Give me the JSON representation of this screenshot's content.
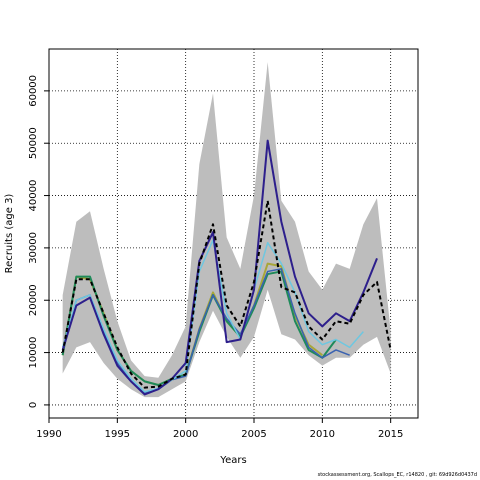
{
  "chart_data": {
    "type": "line",
    "title": "",
    "xlabel": "Years",
    "ylabel": "Recruits (age 3)",
    "xlim": [
      1990,
      2017
    ],
    "ylim": [
      -2500,
      68000
    ],
    "xticks": [
      1990,
      1995,
      2000,
      2005,
      2010,
      2015
    ],
    "yticks": [
      0,
      10000,
      20000,
      30000,
      40000,
      50000,
      60000
    ],
    "grid": true,
    "legend": "none",
    "band": {
      "x": [
        1991,
        1992,
        1993,
        1994,
        1995,
        1996,
        1997,
        1998,
        1999,
        2000,
        2001,
        2002,
        2003,
        2004,
        2005,
        2006,
        2007,
        2008,
        2009,
        2010,
        2011,
        2012,
        2013,
        2014,
        2015
      ],
      "upper": [
        21000,
        35000,
        37000,
        26000,
        16000,
        8500,
        5500,
        5200,
        9500,
        15000,
        46000,
        59500,
        32000,
        26000,
        40000,
        65500,
        39000,
        35000,
        25500,
        22000,
        27000,
        26000,
        34500,
        39500,
        14000
      ],
      "lower": [
        6000,
        11000,
        12000,
        8000,
        5000,
        3000,
        1500,
        1500,
        3000,
        4500,
        12000,
        18000,
        13000,
        9000,
        13000,
        22000,
        13500,
        12500,
        9500,
        7500,
        9000,
        9000,
        11500,
        13000,
        6000
      ],
      "color": "#bdbdbd"
    },
    "series": [
      {
        "x": [
          1991,
          1992,
          1993,
          1994,
          1995,
          1996,
          1997,
          1998,
          1999,
          2000,
          2001,
          2002,
          2003,
          2004,
          2005,
          2006,
          2007,
          2008,
          2009,
          2010,
          2011,
          2012,
          2013,
          2014,
          2015
        ],
        "values": [
          10000,
          24000,
          24000,
          17500,
          11000,
          6000,
          3300,
          3500,
          5000,
          5800,
          27000,
          34500,
          19000,
          15000,
          23500,
          39000,
          22500,
          21500,
          15000,
          12500,
          16000,
          15500,
          21000,
          23500,
          10500
        ],
        "color": "#000000",
        "width": 2,
        "dash": "4,3"
      },
      {
        "x": [
          1991,
          1992,
          1993,
          1994,
          1995,
          1996,
          1997,
          1998,
          1999,
          2000,
          2001,
          2002,
          2003,
          2004,
          2005,
          2006,
          2007,
          2008,
          2009,
          2010,
          2011,
          2012,
          2013,
          2014,
          2015
        ],
        "values": [
          10000,
          24000,
          24000,
          17500,
          11000,
          6000,
          3300,
          3500,
          5000,
          5800,
          27000,
          34500,
          19000,
          15000,
          23500,
          39000,
          22500,
          21500,
          15000,
          12500,
          16000,
          15500,
          21000,
          23500,
          10500
        ],
        "color": "#9a9a9a",
        "width": 1,
        "dash": "4,3"
      },
      {
        "x": [
          1991,
          1992,
          1993,
          1994,
          1995,
          1996,
          1997,
          1998,
          1999,
          2000,
          2001,
          2002,
          2003,
          2004,
          2005,
          2006,
          2007,
          2008,
          2009,
          2010,
          2011,
          2012,
          2013,
          2014
        ],
        "values": [
          10500,
          19000,
          20500,
          13500,
          7500,
          4500,
          2000,
          3000,
          5000,
          8000,
          27500,
          33000,
          12000,
          12500,
          22000,
          50500,
          35000,
          24500,
          17500,
          15000,
          17500,
          16000,
          21500,
          28000
        ],
        "color": "#2d1f8c",
        "width": 2
      },
      {
        "x": [
          1991,
          1992,
          1993,
          1994,
          1995,
          1996,
          1997,
          1998,
          1999,
          2000,
          2001,
          2002,
          2003,
          2004,
          2005,
          2006,
          2007,
          2008,
          2009,
          2010,
          2011,
          2012,
          2013
        ],
        "values": [
          11000,
          20000,
          21000,
          14500,
          8500,
          5000,
          2500,
          3200,
          4800,
          6500,
          25500,
          31500,
          17500,
          12500,
          22000,
          31000,
          27000,
          21500,
          14000,
          11500,
          12500,
          11000,
          14000
        ],
        "color": "#6ec7e0",
        "width": 1.5
      },
      {
        "x": [
          1991,
          1992,
          1993,
          1994,
          1995,
          1996,
          1997,
          1998,
          1999,
          2000,
          2001,
          2002,
          2003,
          2004,
          2005,
          2006,
          2007,
          2008,
          2009,
          2010,
          2011,
          2012
        ],
        "values": [
          10000,
          20000,
          21000,
          14000,
          8000,
          4500,
          2200,
          3000,
          4800,
          5500,
          14500,
          21000,
          16500,
          13500,
          19000,
          25500,
          26000,
          17500,
          11000,
          9000,
          10500,
          9500
        ],
        "color": "#3a62b0",
        "width": 1.5
      },
      {
        "x": [
          1991,
          1992,
          1993,
          1994,
          1995,
          1996,
          1997,
          1998,
          1999,
          2000,
          2001,
          2002,
          2003,
          2004,
          2005,
          2006,
          2007,
          2008,
          2009,
          2010,
          2011
        ],
        "values": [
          9500,
          24500,
          24500,
          17000,
          10500,
          6500,
          4500,
          3800,
          5000,
          5800,
          14000,
          21000,
          16000,
          13000,
          18500,
          25000,
          25500,
          16000,
          10500,
          9000,
          12500
        ],
        "color": "#1f8a5a",
        "width": 2
      },
      {
        "x": [
          1991,
          1992,
          1993,
          1994,
          1995,
          1996,
          1997,
          1998,
          1999,
          2000,
          2001,
          2002,
          2003,
          2004,
          2005,
          2006,
          2007,
          2008,
          2009,
          2010
        ],
        "values": [
          9500,
          24500,
          24000,
          17500,
          10500,
          6500,
          4500,
          3800,
          5000,
          5800,
          14500,
          21500,
          16000,
          13000,
          19000,
          27000,
          26500,
          17000,
          11500,
          9500
        ],
        "color": "#a8a63a",
        "width": 2
      }
    ]
  },
  "footer": "stockassessment.org, Scallops_EC, r14820 , git: 69d926d0437d"
}
